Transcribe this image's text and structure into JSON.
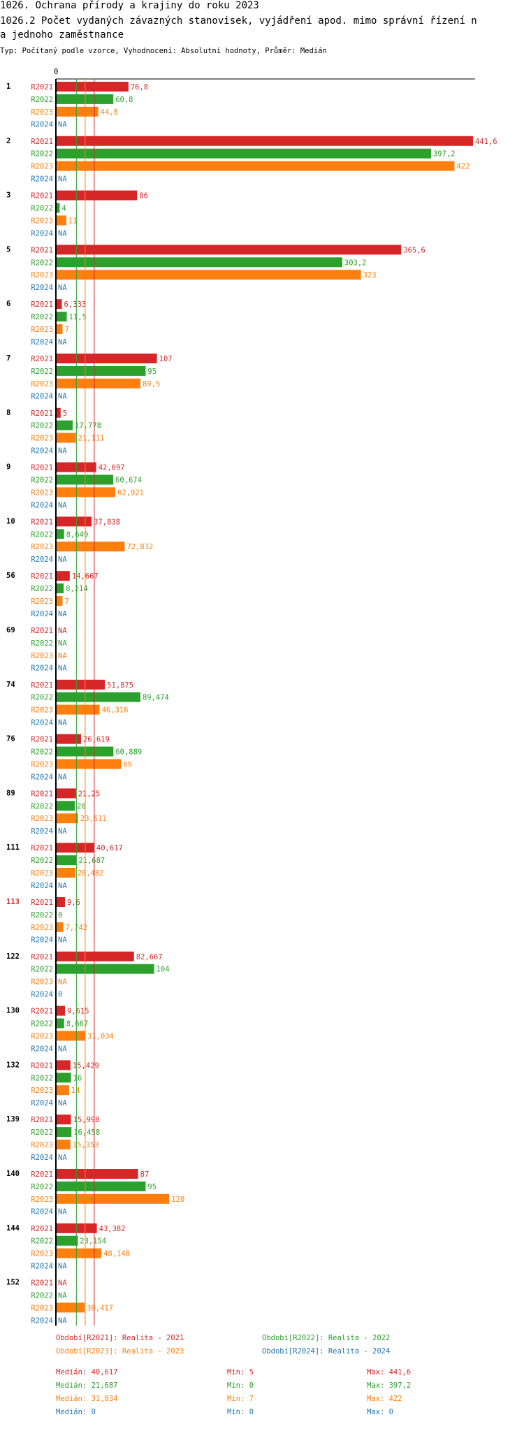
{
  "title_line1": "1026. Ochrana přírody a krajiny do roku 2023",
  "title_line2": "1026.2 Počet vydaných závazných stanovisek, vyjádření apod. mimo správní řízení n",
  "title_line3": "a jednoho zaměstnance",
  "subtitle": "Typ: Počítaný podle vzorce, Vyhodnocení: Absolutní hodnoty, Průměr: Medián",
  "colors": {
    "R2021": "#d62728",
    "R2022": "#2ca02c",
    "R2023": "#ff7f0e",
    "R2024": "#1f77b4",
    "highlight": "#d62728"
  },
  "chart_data": {
    "type": "bar",
    "orientation": "horizontal",
    "axis_zero_label": "0",
    "xlim": [
      0,
      441.6
    ],
    "series_names": [
      "R2021",
      "R2022",
      "R2023",
      "R2024"
    ],
    "groups": [
      {
        "id": "1",
        "values": [
          76.8,
          60.8,
          44.8,
          null
        ],
        "labels": [
          "76,8",
          "60,8",
          "44,8",
          "NA"
        ]
      },
      {
        "id": "2",
        "values": [
          441.6,
          397.2,
          422,
          null
        ],
        "labels": [
          "441,6",
          "397,2",
          "422",
          "NA"
        ]
      },
      {
        "id": "3",
        "values": [
          86,
          4,
          11,
          null
        ],
        "labels": [
          "86",
          "4",
          "11",
          "NA"
        ]
      },
      {
        "id": "5",
        "values": [
          365.6,
          303.2,
          323,
          null
        ],
        "labels": [
          "365,6",
          "303,2",
          "323",
          "NA"
        ]
      },
      {
        "id": "6",
        "values": [
          6.333,
          11.5,
          7,
          null
        ],
        "labels": [
          "6,333",
          "11,5",
          "7",
          "NA"
        ]
      },
      {
        "id": "7",
        "values": [
          107,
          95,
          89.5,
          null
        ],
        "labels": [
          "107",
          "95",
          "89,5",
          "NA"
        ]
      },
      {
        "id": "8",
        "values": [
          5,
          17.778,
          21.111,
          null
        ],
        "labels": [
          "5",
          "17,778",
          "21,111",
          "NA"
        ]
      },
      {
        "id": "9",
        "values": [
          42.697,
          60.674,
          62.921,
          null
        ],
        "labels": [
          "42,697",
          "60,674",
          "62,921",
          "NA"
        ]
      },
      {
        "id": "10",
        "values": [
          37.838,
          8.649,
          72.832,
          null
        ],
        "labels": [
          "37,838",
          "8,649",
          "72,832",
          "NA"
        ]
      },
      {
        "id": "56",
        "values": [
          14.667,
          8.214,
          7,
          null
        ],
        "labels": [
          "14,667",
          "8,214",
          "7",
          "NA"
        ]
      },
      {
        "id": "69",
        "values": [
          null,
          null,
          null,
          null
        ],
        "labels": [
          "NA",
          "NA",
          "NA",
          "NA"
        ]
      },
      {
        "id": "74",
        "values": [
          51.875,
          89.474,
          46.316,
          null
        ],
        "labels": [
          "51,875",
          "89,474",
          "46,316",
          "NA"
        ]
      },
      {
        "id": "76",
        "values": [
          26.619,
          60.889,
          69,
          null
        ],
        "labels": [
          "26,619",
          "60,889",
          "69",
          "NA"
        ]
      },
      {
        "id": "89",
        "values": [
          21.25,
          20,
          23.611,
          null
        ],
        "labels": [
          "21,25",
          "20",
          "23,611",
          "NA"
        ]
      },
      {
        "id": "111",
        "values": [
          40.617,
          21.687,
          20.482,
          null
        ],
        "labels": [
          "40,617",
          "21,687",
          "20,482",
          "NA"
        ]
      },
      {
        "id": "113",
        "values": [
          9.6,
          0,
          7.742,
          null
        ],
        "labels": [
          "9,6",
          "0",
          "7,742",
          "NA"
        ],
        "highlight": true
      },
      {
        "id": "122",
        "values": [
          82.667,
          104,
          null,
          0
        ],
        "labels": [
          "82,667",
          "104",
          "NA",
          "0"
        ]
      },
      {
        "id": "130",
        "values": [
          9.615,
          8.667,
          31.034,
          null
        ],
        "labels": [
          "9,615",
          "8,667",
          "31,034",
          "NA"
        ]
      },
      {
        "id": "132",
        "values": [
          15.429,
          16,
          14,
          null
        ],
        "labels": [
          "15,429",
          "16",
          "14",
          "NA"
        ]
      },
      {
        "id": "139",
        "values": [
          15.998,
          16.458,
          15.353,
          null
        ],
        "labels": [
          "15,998",
          "16,458",
          "15,353",
          "NA"
        ]
      },
      {
        "id": "140",
        "values": [
          87,
          95,
          120,
          null
        ],
        "labels": [
          "87",
          "95",
          "120",
          "NA"
        ]
      },
      {
        "id": "144",
        "values": [
          43.382,
          23.154,
          48.148,
          null
        ],
        "labels": [
          "43,382",
          "23,154",
          "48,148",
          "NA"
        ]
      },
      {
        "id": "152",
        "values": [
          null,
          null,
          30.417,
          null
        ],
        "labels": [
          "NA",
          "NA",
          "30,417",
          "NA"
        ]
      }
    ],
    "median_lines": [
      40.617,
      21.687,
      31.034,
      0
    ],
    "legend": [
      "Období[R2021]: Realita - 2021",
      "Období[R2022]: Realita - 2022",
      "Období[R2023]: Realita - 2023",
      "Období[R2024]: Realita - 2024"
    ],
    "stats": [
      {
        "median": "Medián: 40,617",
        "min": "Min: 5",
        "max": "Max: 441,6"
      },
      {
        "median": "Medián: 21,687",
        "min": "Min: 0",
        "max": "Max: 397,2"
      },
      {
        "median": "Medián: 31,034",
        "min": "Min: 7",
        "max": "Max: 422"
      },
      {
        "median": "Medián: 0",
        "min": "Min: 0",
        "max": "Max: 0"
      }
    ]
  }
}
